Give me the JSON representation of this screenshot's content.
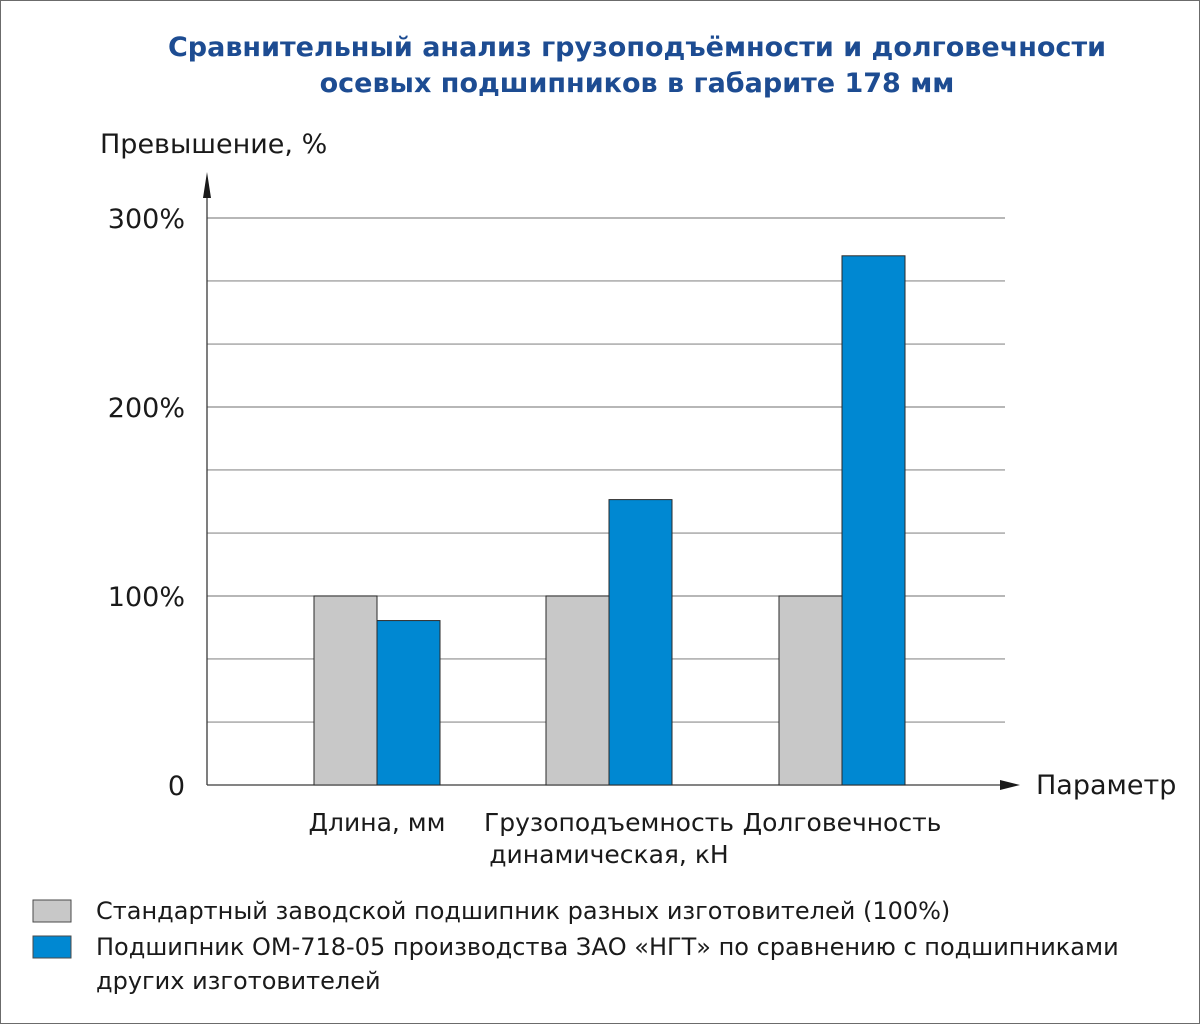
{
  "chart_data": {
    "type": "bar",
    "title_lines": [
      "Сравнительный анализ грузоподъёмности и долговечности",
      "осевых подшипников в габарите 178 мм"
    ],
    "ylabel": "Превышение, %",
    "xlabel": "Параметр",
    "ylim": [
      0,
      300
    ],
    "yticks": [
      {
        "value": 0,
        "label": "0"
      },
      {
        "value": 100,
        "label": "100%"
      },
      {
        "value": 200,
        "label": "200%"
      },
      {
        "value": 300,
        "label": "300%"
      }
    ],
    "gridlines": [
      33.3,
      66.7,
      100,
      133.3,
      166.7,
      200,
      233.3,
      266.7,
      300
    ],
    "grid": true,
    "categories": [
      [
        "Длина, мм"
      ],
      [
        "Грузоподъемность",
        "динамическая, кН"
      ],
      [
        "Долговечность"
      ]
    ],
    "series": [
      {
        "name": "Стандартный заводской подшипник разных изготовителей (100%)",
        "color": "#c8c8c8",
        "values": [
          100,
          100,
          100
        ]
      },
      {
        "name": "Подшипник ОМ-718-05 производства ЗАО «НГТ» по сравнению с подшипниками других изготовителей",
        "name_lines": [
          "Подшипник ОМ-718-05 производства ЗАО «НГТ» по сравнению с подшипниками",
          "других изготовителей"
        ],
        "color": "#0088d2",
        "values": [
          87,
          151,
          280
        ]
      }
    ],
    "legend_position": "bottom-left"
  }
}
